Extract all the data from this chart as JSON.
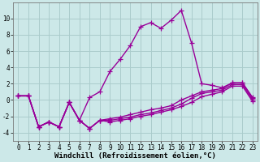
{
  "background_color": "#cce8e8",
  "grid_color": "#aacccc",
  "line_color": "#990099",
  "marker": "+",
  "markersize": 4,
  "linewidth": 1.0,
  "xlabel": "Windchill (Refroidissement éolien,°C)",
  "xlabel_fontsize": 6.5,
  "tick_fontsize": 5.5,
  "ylim": [
    -5,
    12
  ],
  "xlim": [
    -0.5,
    23.5
  ],
  "yticks": [
    -4,
    -2,
    0,
    2,
    4,
    6,
    8,
    10
  ],
  "xticks": [
    0,
    1,
    2,
    3,
    4,
    5,
    6,
    7,
    8,
    9,
    10,
    11,
    12,
    13,
    14,
    15,
    16,
    17,
    18,
    19,
    20,
    21,
    22,
    23
  ],
  "series_main_x": [
    0,
    1,
    2,
    3,
    4,
    5,
    6,
    7,
    8,
    9,
    10,
    11,
    12,
    13,
    14,
    15,
    16,
    17,
    18,
    19,
    20,
    21,
    22,
    23
  ],
  "series_main_y": [
    0.5,
    0.5,
    -3.3,
    -2.7,
    -3.3,
    -0.3,
    -2.5,
    0.3,
    1.0,
    3.5,
    5.0,
    6.7,
    9.0,
    9.5,
    8.8,
    9.8,
    11.0,
    7.0,
    2.0,
    1.8,
    1.5,
    2.1,
    2.1,
    0.3
  ],
  "series1_x": [
    0,
    1,
    2,
    3,
    4,
    5,
    6,
    7,
    8,
    9,
    10,
    11,
    12,
    13,
    14,
    15,
    16,
    17,
    18,
    19,
    20,
    21,
    22,
    23
  ],
  "series1_y": [
    0.5,
    0.5,
    -3.3,
    -2.7,
    -3.3,
    -0.3,
    -2.5,
    -3.5,
    -2.5,
    -2.3,
    -2.1,
    -1.8,
    -1.5,
    -1.2,
    -1.0,
    -0.7,
    0.0,
    0.5,
    1.0,
    1.2,
    1.4,
    2.1,
    2.1,
    0.2
  ],
  "series2_x": [
    0,
    1,
    2,
    3,
    4,
    5,
    6,
    7,
    8,
    9,
    10,
    11,
    12,
    13,
    14,
    15,
    16,
    17,
    18,
    19,
    20,
    21,
    22,
    23
  ],
  "series2_y": [
    0.5,
    0.5,
    -3.3,
    -2.7,
    -3.3,
    -0.3,
    -2.5,
    -3.5,
    -2.5,
    -2.5,
    -2.3,
    -2.1,
    -1.8,
    -1.6,
    -1.3,
    -1.0,
    -0.5,
    0.2,
    0.8,
    1.0,
    1.2,
    1.9,
    1.9,
    0.0
  ],
  "series3_x": [
    0,
    1,
    2,
    3,
    4,
    5,
    6,
    7,
    8,
    9,
    10,
    11,
    12,
    13,
    14,
    15,
    16,
    17,
    18,
    19,
    20,
    21,
    22,
    23
  ],
  "series3_y": [
    0.5,
    0.5,
    -3.3,
    -2.7,
    -3.3,
    -0.3,
    -2.5,
    -3.5,
    -2.5,
    -2.7,
    -2.5,
    -2.3,
    -2.0,
    -1.8,
    -1.5,
    -1.2,
    -0.8,
    -0.3,
    0.4,
    0.7,
    1.0,
    1.7,
    1.7,
    -0.2
  ]
}
